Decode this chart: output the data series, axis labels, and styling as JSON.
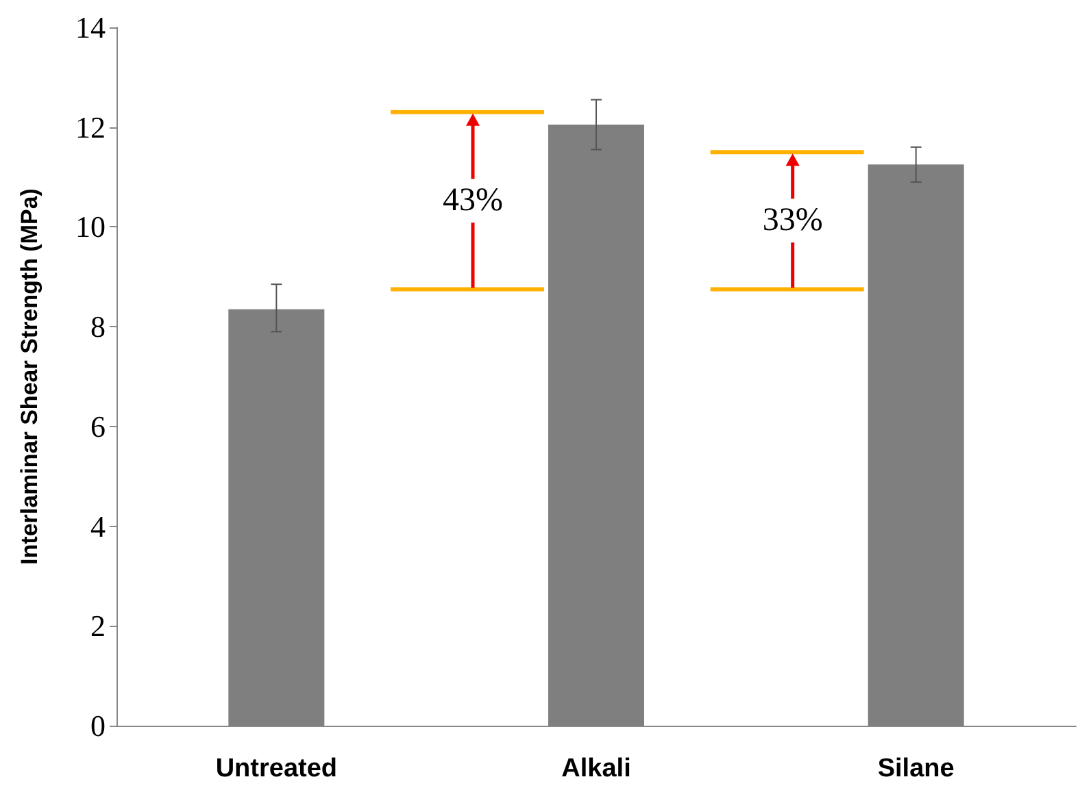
{
  "chart_data": {
    "type": "bar",
    "ylabel": "Interlaminar Shear Strength (MPa)",
    "categories": [
      "Untreated",
      "Alkali",
      "Silane"
    ],
    "values": [
      8.35,
      12.05,
      11.25
    ],
    "color": "#7f7f7f",
    "errors": [
      [
        7.9,
        8.85
      ],
      [
        11.55,
        12.55
      ],
      [
        10.9,
        11.6
      ]
    ],
    "ylim": [
      0,
      14
    ],
    "yticks": [
      0,
      2,
      4,
      6,
      8,
      10,
      12,
      14
    ],
    "grid": false,
    "annotations": [
      "43%",
      "33%"
    ],
    "ref_lines": [
      {
        "axis": "y",
        "value": 8.75,
        "color": "#ffb000"
      },
      {
        "axis": "y",
        "value": 12.3,
        "color": "#ffb000"
      },
      {
        "axis": "y",
        "value": 11.5,
        "color": "#ffb000"
      }
    ]
  }
}
